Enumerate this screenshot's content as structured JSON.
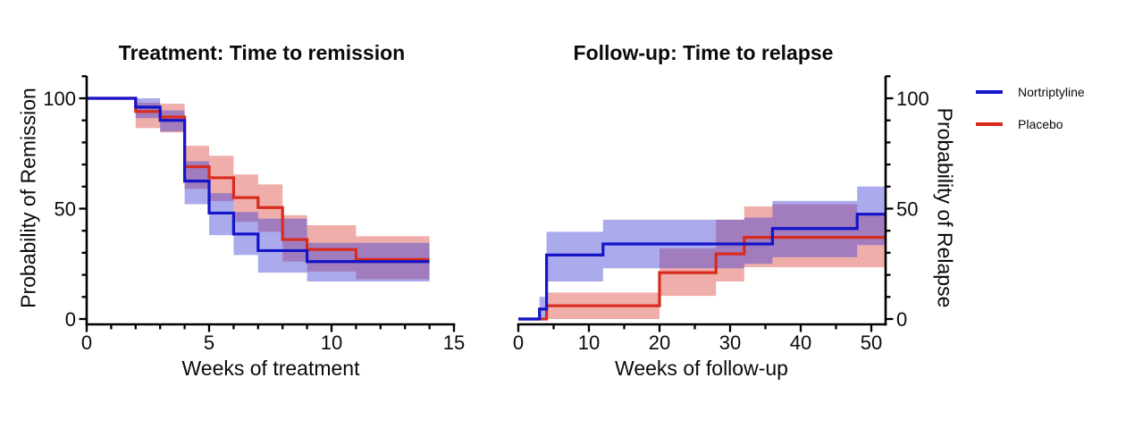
{
  "figure": {
    "background": "#ffffff",
    "axis_color": "#000000",
    "text_color": "#0a0a0a"
  },
  "legend": {
    "items": [
      {
        "label": "Nortriptyline",
        "color": "#1414c8"
      },
      {
        "label": "Placebo",
        "color": "#d92a1e"
      }
    ]
  },
  "chart_data": [
    {
      "type": "line",
      "subtype": "kaplan-meier-step-with-ci-bands",
      "title": "Treatment: Time to remission",
      "xlabel": "Weeks of treatment",
      "ylabel": "Probability of Remission",
      "xlim": [
        0,
        15
      ],
      "ylim": [
        0,
        110
      ],
      "grid": false,
      "y_axis_side": "left",
      "x_major_ticks": [
        0,
        5,
        10,
        15
      ],
      "x_minor_ticks": [
        1,
        2,
        3,
        4,
        6,
        7,
        8,
        9,
        11,
        12,
        13,
        14
      ],
      "y_major_ticks": [
        0,
        50,
        100
      ],
      "y_minor_ticks": [
        10,
        20,
        30,
        40,
        60,
        70,
        80,
        90,
        110
      ],
      "series": [
        {
          "name": "Nortriptyline",
          "line_color": "#1414c8",
          "band_color": "rgba(66,66,215,0.45)",
          "end_x": 14,
          "steps": [
            [
              0,
              100
            ],
            [
              2,
              96
            ],
            [
              3,
              90
            ],
            [
              4,
              62.5
            ],
            [
              5,
              48
            ],
            [
              6,
              38.5
            ],
            [
              7,
              31
            ],
            [
              9,
              26
            ]
          ],
          "ci_steps": [
            [
              2,
              91,
              100
            ],
            [
              3,
              85,
              94.5
            ],
            [
              4,
              52,
              71.5
            ],
            [
              5,
              38,
              57
            ],
            [
              6,
              29,
              48.5
            ],
            [
              7,
              21,
              45.5
            ],
            [
              9,
              17,
              34.5
            ]
          ]
        },
        {
          "name": "Placebo",
          "line_color": "#d92a1e",
          "band_color": "rgba(219,75,64,0.45)",
          "end_x": 14,
          "steps": [
            [
              0,
              100
            ],
            [
              2,
              94
            ],
            [
              3,
              91.5
            ],
            [
              4,
              69
            ],
            [
              5,
              64
            ],
            [
              6,
              55
            ],
            [
              7,
              50.5
            ],
            [
              8,
              36
            ],
            [
              9,
              31.5
            ],
            [
              11,
              27
            ]
          ],
          "ci_steps": [
            [
              2,
              86.5,
              98
            ],
            [
              3,
              84.5,
              97.5
            ],
            [
              4,
              59,
              78.5
            ],
            [
              5,
              53.5,
              74
            ],
            [
              6,
              44,
              65.5
            ],
            [
              7,
              39.5,
              61
            ],
            [
              8,
              26,
              47
            ],
            [
              9,
              21.5,
              42.5
            ],
            [
              11,
              18,
              37.5
            ]
          ]
        }
      ]
    },
    {
      "type": "line",
      "subtype": "kaplan-meier-step-with-ci-bands",
      "title": "Follow-up: Time to relapse",
      "xlabel": "Weeks of follow-up",
      "ylabel": "Probability of Relapse",
      "xlim": [
        0,
        52
      ],
      "ylim": [
        0,
        110
      ],
      "grid": false,
      "y_axis_side": "right",
      "x_major_ticks": [
        0,
        10,
        20,
        30,
        40,
        50
      ],
      "x_minor_ticks": [
        5,
        15,
        25,
        35,
        45
      ],
      "y_major_ticks": [
        0,
        50,
        100
      ],
      "y_minor_ticks": [
        10,
        20,
        30,
        40,
        60,
        70,
        80,
        90,
        110
      ],
      "series": [
        {
          "name": "Nortriptyline",
          "line_color": "#1414c8",
          "band_color": "rgba(66,66,215,0.45)",
          "end_x": 52,
          "steps": [
            [
              0,
              0
            ],
            [
              3,
              4.5
            ],
            [
              4,
              29
            ],
            [
              12,
              34
            ],
            [
              36,
              41
            ],
            [
              48,
              47.5
            ]
          ],
          "ci_steps": [
            [
              3,
              0,
              10
            ],
            [
              4,
              17,
              39.5
            ],
            [
              12,
              23,
              45
            ],
            [
              32,
              25,
              46
            ],
            [
              36,
              28,
              53.5
            ],
            [
              48,
              33.5,
              60
            ]
          ]
        },
        {
          "name": "Placebo",
          "line_color": "#d92a1e",
          "band_color": "rgba(219,75,64,0.45)",
          "end_x": 52,
          "steps": [
            [
              0,
              0
            ],
            [
              4,
              6
            ],
            [
              20,
              21
            ],
            [
              28,
              29.5
            ],
            [
              32,
              37
            ]
          ],
          "ci_steps": [
            [
              4,
              0,
              12
            ],
            [
              20,
              10.5,
              32
            ],
            [
              28,
              17,
              45
            ],
            [
              32,
              23.5,
              51
            ],
            [
              36,
              23.5,
              52
            ],
            [
              48,
              23.5,
              47.5
            ]
          ]
        }
      ]
    }
  ]
}
